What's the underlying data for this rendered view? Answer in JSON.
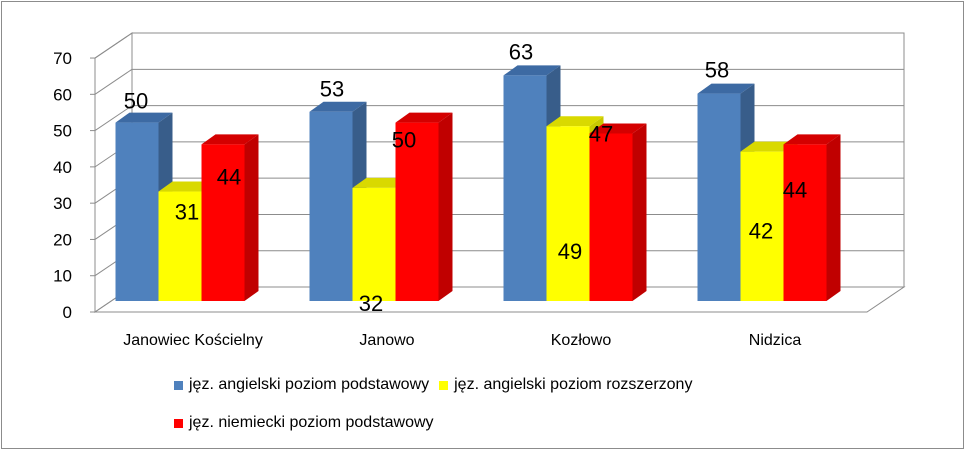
{
  "chart_data": {
    "type": "bar",
    "title": "",
    "xlabel": "",
    "ylabel": "",
    "ylim": [
      0,
      70
    ],
    "yticks": [
      0,
      10,
      20,
      30,
      40,
      50,
      60,
      70
    ],
    "categories": [
      "Janowiec Kościelny",
      "Janowo",
      "Kozłowo",
      "Nidzica"
    ],
    "series": [
      {
        "name": "jęz. angielski poziom podstawowy",
        "color": "#4f81bd",
        "side_color": "#385d8a",
        "top_color": "#3d6aa3",
        "values": [
          50,
          53,
          63,
          58
        ]
      },
      {
        "name": "jęz. angielski poziom rozszerzony",
        "color": "#ffff00",
        "side_color": "#c8c800",
        "top_color": "#d9d900",
        "values": [
          31,
          32,
          49,
          42
        ]
      },
      {
        "name": "jęz. niemiecki poziom podstawowy",
        "color": "#ff0000",
        "side_color": "#c00000",
        "top_color": "#d40000",
        "values": [
          44,
          50,
          47,
          44
        ]
      }
    ],
    "grid": true,
    "legend": "bottom"
  }
}
